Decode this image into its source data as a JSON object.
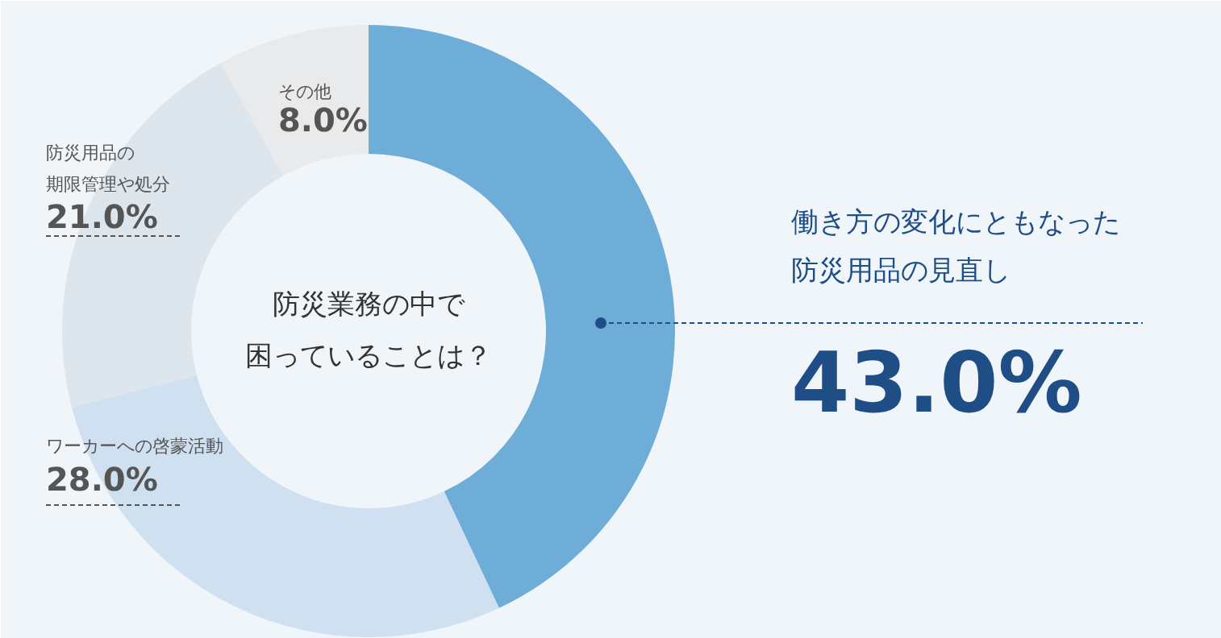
{
  "chart_data": {
    "type": "donut",
    "title": "防災業務の中で困っていることは？",
    "categories": [
      "働き方の変化にともなった防災用品の見直し",
      "ワーカーへの啓蒙活動",
      "防災用品の期限管理や処分",
      "その他"
    ],
    "values": [
      43.0,
      28.0,
      21.0,
      8.0
    ],
    "value_labels": [
      "43.0%",
      "28.0%",
      "21.0%",
      "8.0%"
    ],
    "colors": [
      "#6fadd9",
      "#cfe0f0",
      "#dde6ed",
      "#e8eaec"
    ]
  }
}
